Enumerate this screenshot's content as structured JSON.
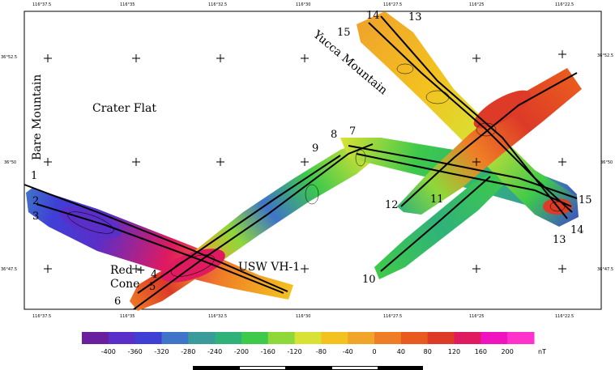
{
  "map": {
    "place_labels": {
      "bare_mountain": "Bare Mountain",
      "crater_flat": "Crater Flat",
      "yucca_mountain": "Yucca Mountain",
      "red_cone_line1": "Red",
      "red_cone_line2": "Cone",
      "usw_vh1": "USW VH-1"
    },
    "line_numbers": {
      "n1": "1",
      "n2": "2",
      "n3": "3",
      "n4": "4",
      "n5": "5",
      "n6": "6",
      "n7": "7",
      "n8": "8",
      "n9": "9",
      "n10": "10",
      "n11": "11",
      "n12": "12",
      "n13_top": "13",
      "n14_top": "14",
      "n15_top": "15",
      "n13_right": "13",
      "n14_right": "14",
      "n15_right": "15"
    },
    "top_ticks": [
      "116°37.5",
      "116°35",
      "116°32.5",
      "116°30",
      "116°27.5",
      "116°25",
      "116°22.5"
    ],
    "bottom_ticks": [
      "116°37.5",
      "116°35",
      "116°32.5",
      "116°30",
      "116°27.5",
      "116°25",
      "116°22.5"
    ],
    "left_ticks": [
      "36°52.5",
      "36°50",
      "36°47.5"
    ],
    "right_ticks": [
      "36°52.5",
      "36°50",
      "36°47.5"
    ]
  },
  "colorbar": {
    "labels": [
      "-400",
      "-360",
      "-320",
      "-280",
      "-240",
      "-200",
      "-160",
      "-120",
      "-80",
      "-40",
      "0",
      "40",
      "80",
      "120",
      "160",
      "200"
    ],
    "unit": "nT",
    "colors": [
      "#6a1f9e",
      "#5a2ec8",
      "#3f3fd6",
      "#3f74c8",
      "#3b9a9a",
      "#2fb27a",
      "#3ec94b",
      "#8ed83a",
      "#d7e234",
      "#f3c21f",
      "#f0a52a",
      "#ef7d26",
      "#e95a1f",
      "#dd3a27",
      "#e01a5f",
      "#f013c0",
      "#ff33cc"
    ]
  }
}
